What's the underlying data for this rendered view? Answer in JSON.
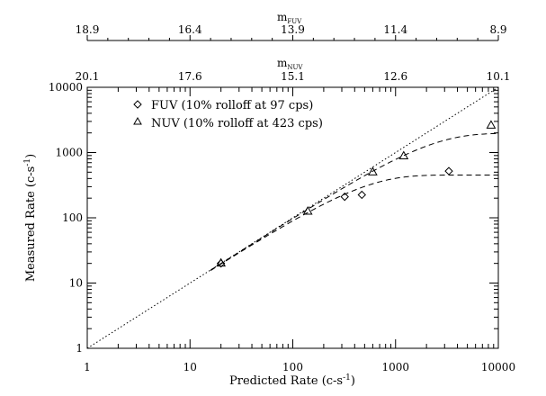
{
  "chart_data": {
    "type": "scatter",
    "xlabel": "Predicted Rate (c-s",
    "xlabel_sup": "-1",
    "xlabel_close": ")",
    "ylabel": "Measured Rate (c-s",
    "ylabel_sup": "-1",
    "ylabel_close": ")",
    "xscale": "log",
    "yscale": "log",
    "xlim": [
      1,
      10000
    ],
    "ylim": [
      1,
      10000
    ],
    "x_ticks": [
      1,
      10,
      100,
      1000,
      10000
    ],
    "x_tick_labels": [
      "1",
      "10",
      "100",
      "1000",
      "10000"
    ],
    "y_ticks": [
      1,
      10,
      100,
      1000,
      10000
    ],
    "y_tick_labels": [
      "1",
      "10",
      "100",
      "1000",
      "10000"
    ],
    "top_axes": [
      {
        "title_main": "m",
        "title_sub": "FUV",
        "tick_labels": [
          "18.9",
          "16.4",
          "13.9",
          "11.4",
          "8.9"
        ]
      },
      {
        "title_main": "m",
        "title_sub": "NUV",
        "tick_labels": [
          "20.1",
          "17.6",
          "15.1",
          "12.6",
          "10.1"
        ]
      }
    ],
    "legend_placement": "top-left",
    "series": [
      {
        "name": "FUV (10% rolloff at 97 cps)",
        "marker": "diamond",
        "points": [
          [
            20,
            20
          ],
          [
            320,
            210
          ],
          [
            470,
            225
          ],
          [
            3300,
            520
          ]
        ]
      },
      {
        "name": "NUV (10% rolloff at 423 cps)",
        "marker": "triangle",
        "points": [
          [
            20,
            20
          ],
          [
            140,
            125
          ],
          [
            600,
            500
          ],
          [
            1200,
            880
          ],
          [
            8500,
            2600
          ]
        ]
      }
    ],
    "reference_line": {
      "style": "dotted",
      "relation": "y = x"
    },
    "model_curves": [
      {
        "style": "dashed",
        "series": "FUV",
        "rolloff_fraction": 0.1,
        "rolloff_rate": 97
      },
      {
        "style": "dashed",
        "series": "NUV",
        "rolloff_fraction": 0.1,
        "rolloff_rate": 423
      }
    ]
  }
}
